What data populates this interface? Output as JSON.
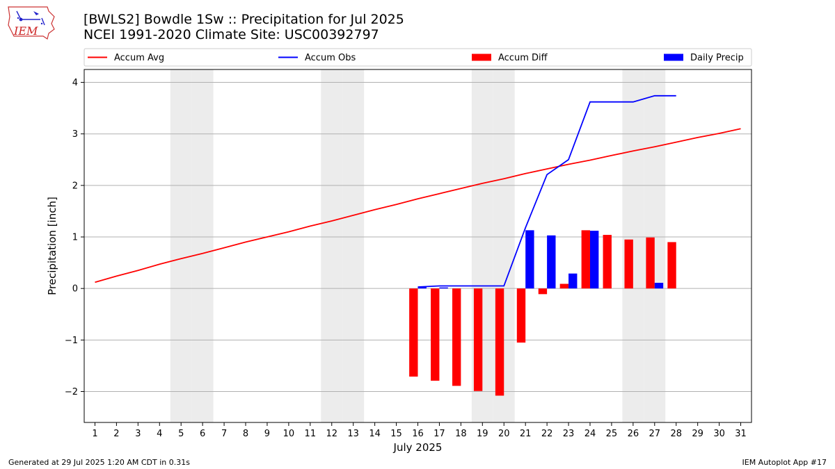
{
  "header": {
    "logo_text": "IEM",
    "title": "[BWLS2] Bowdle 1Sw :: Precipitation for Jul 2025",
    "subtitle": "NCEI 1991-2020 Climate Site: USC00392797"
  },
  "footer": {
    "generated": "Generated at 29 Jul 2025 1:20 AM CDT in 0.31s",
    "app": "IEM Autoplot App #17"
  },
  "colors": {
    "avg": "#ff0000",
    "obs": "#0000ff",
    "diff": "#ff0000",
    "daily": "#0000ff",
    "weekend": "#ececec",
    "grid": "#b0b0b0"
  },
  "chart_data": {
    "type": "bar",
    "xlabel": "July 2025",
    "ylabel": "Precipitation [inch]",
    "xlim": [
      0.5,
      31.5
    ],
    "ylim": [
      -2.6,
      4.25
    ],
    "x_ticks": [
      1,
      2,
      3,
      4,
      5,
      6,
      7,
      8,
      9,
      10,
      11,
      12,
      13,
      14,
      15,
      16,
      17,
      18,
      19,
      20,
      21,
      22,
      23,
      24,
      25,
      26,
      27,
      28,
      29,
      30,
      31
    ],
    "y_ticks": [
      -2,
      -1,
      0,
      1,
      2,
      3,
      4
    ],
    "y_tick_labels": [
      "−2",
      "−1",
      "0",
      "1",
      "2",
      "3",
      "4"
    ],
    "grid": "horizontal",
    "legend_position": "top",
    "legend": [
      {
        "label": "Accum Avg",
        "kind": "line",
        "color": "#ff0000"
      },
      {
        "label": "Accum Obs",
        "kind": "line",
        "color": "#0000ff"
      },
      {
        "label": "Accum Diff",
        "kind": "bar",
        "color": "#ff0000"
      },
      {
        "label": "Daily Precip",
        "kind": "bar",
        "color": "#0000ff"
      }
    ],
    "weekend_days": [
      5,
      6,
      12,
      13,
      19,
      20,
      26,
      27
    ],
    "series": [
      {
        "name": "Accum Avg",
        "type": "line",
        "color": "#ff0000",
        "x": [
          1,
          2,
          3,
          4,
          5,
          6,
          7,
          8,
          9,
          10,
          11,
          12,
          13,
          14,
          15,
          16,
          17,
          18,
          19,
          20,
          21,
          22,
          23,
          24,
          25,
          26,
          27,
          28,
          29,
          30,
          31
        ],
        "values": [
          0.12,
          0.24,
          0.35,
          0.47,
          0.58,
          0.68,
          0.79,
          0.9,
          1.0,
          1.1,
          1.21,
          1.31,
          1.42,
          1.53,
          1.63,
          1.74,
          1.84,
          1.94,
          2.04,
          2.13,
          2.23,
          2.32,
          2.41,
          2.49,
          2.58,
          2.67,
          2.75,
          2.84,
          2.93,
          3.01,
          3.1
        ]
      },
      {
        "name": "Accum Obs",
        "type": "line",
        "color": "#0000ff",
        "x": [
          16,
          17,
          18,
          19,
          20,
          21,
          22,
          23,
          24,
          25,
          26,
          27,
          28
        ],
        "values": [
          0.03,
          0.05,
          0.05,
          0.05,
          0.05,
          1.18,
          2.21,
          2.5,
          3.62,
          3.62,
          3.62,
          3.74,
          3.74
        ]
      },
      {
        "name": "Accum Diff",
        "type": "bar",
        "color": "#ff0000",
        "offset": -0.2,
        "x": [
          16,
          17,
          18,
          19,
          20,
          21,
          22,
          23,
          24,
          25,
          26,
          27,
          28
        ],
        "values": [
          -1.71,
          -1.79,
          -1.89,
          -1.99,
          -2.08,
          -1.05,
          -0.11,
          0.09,
          1.13,
          1.04,
          0.95,
          0.99,
          0.9
        ]
      },
      {
        "name": "Daily Precip",
        "type": "bar",
        "color": "#0000ff",
        "offset": 0.2,
        "x": [
          16,
          17,
          18,
          19,
          20,
          21,
          22,
          23,
          24,
          25,
          26,
          27,
          28
        ],
        "values": [
          0.03,
          0.02,
          0.0,
          0.0,
          0.0,
          1.13,
          1.03,
          0.29,
          1.12,
          0.0,
          0.0,
          0.11,
          0.0
        ]
      }
    ]
  }
}
